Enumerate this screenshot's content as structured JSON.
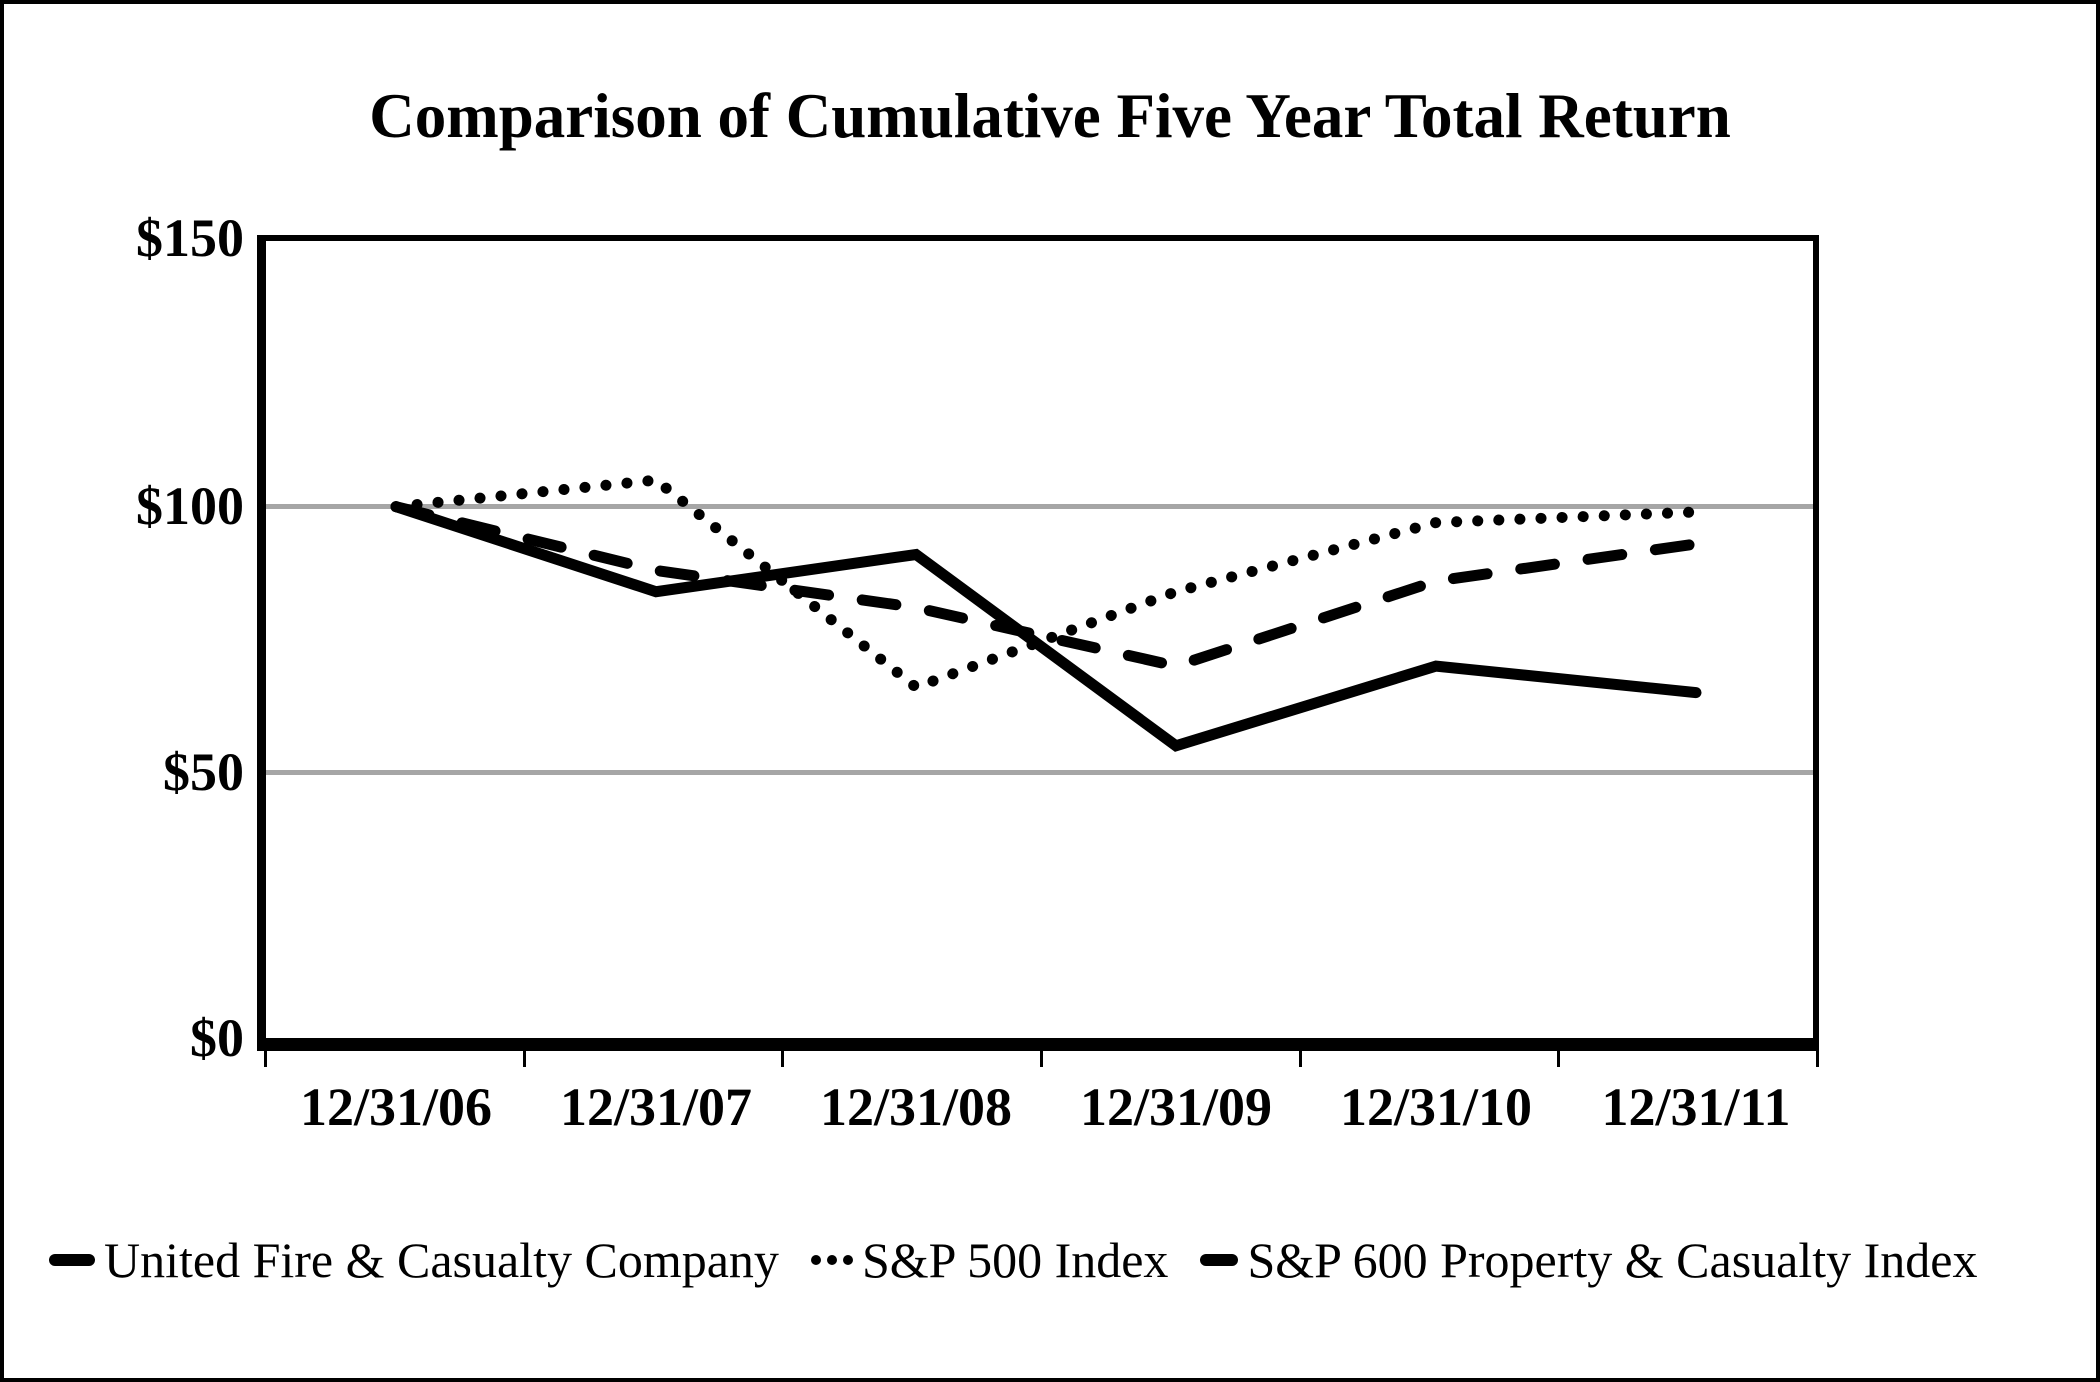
{
  "title": "Comparison of Cumulative Five Year Total Return",
  "chart_data": {
    "type": "line",
    "title": "Comparison of Cumulative Five Year Total Return",
    "categories": [
      "12/31/06",
      "12/31/07",
      "12/31/08",
      "12/31/09",
      "12/31/10",
      "12/31/11"
    ],
    "series": [
      {
        "name": "United Fire & Casualty Company",
        "line_style": "solid",
        "values": [
          100,
          84,
          91,
          55,
          70,
          65
        ]
      },
      {
        "name": "S&P 500 Index",
        "line_style": "dotted",
        "values": [
          100,
          105,
          66,
          84,
          97,
          99
        ]
      },
      {
        "name": "S&P 600 Property & Casualty Index",
        "line_style": "dashed",
        "values": [
          100,
          88,
          81,
          70,
          86,
          93
        ]
      }
    ],
    "ylim": [
      0,
      150
    ],
    "ytick_labels_top_to_bottom": [
      "$150",
      "$100",
      "$50",
      "$0"
    ],
    "grid_values": [
      100,
      50
    ],
    "grid_on": true,
    "legend_position": "bottom",
    "line_color": "#000000",
    "gridline_color": "#a6a6a6",
    "background_color": "#ffffff"
  }
}
